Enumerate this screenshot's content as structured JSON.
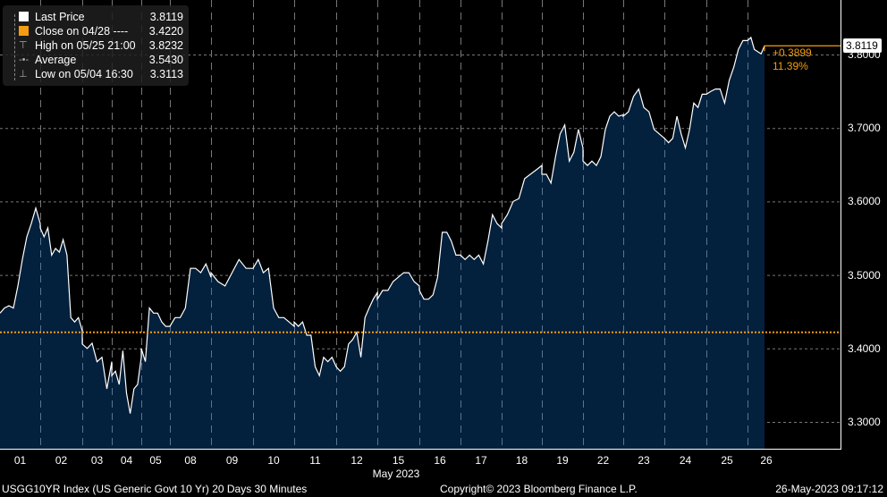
{
  "chart_data": {
    "type": "area",
    "ylim": [
      3.26,
      3.865
    ],
    "yticks": [
      "3.3000",
      "3.4000",
      "3.5000",
      "3.6000",
      "3.7000",
      "3.8000"
    ],
    "ytick_values": [
      3.3,
      3.4,
      3.5,
      3.6,
      3.7,
      3.8
    ],
    "xlabel": "May 2023",
    "grid": true,
    "legend_placement": "top-left",
    "days": [
      {
        "label": "01",
        "values": [
          3.448,
          3.455,
          3.458,
          3.455,
          3.485,
          3.521,
          3.552,
          3.57,
          3.591,
          3.57
        ]
      },
      {
        "label": "02",
        "values": [
          3.564,
          3.552,
          3.564,
          3.527,
          3.536,
          3.531,
          3.548,
          3.527,
          3.442,
          3.436,
          3.442,
          3.424
        ]
      },
      {
        "label": "03",
        "values": [
          3.406,
          3.4,
          3.407,
          3.382,
          3.388,
          3.345,
          3.382
        ]
      },
      {
        "label": "04",
        "values": [
          3.363,
          3.369,
          3.351,
          3.397,
          3.339,
          3.3113,
          3.345,
          3.351,
          3.388
        ]
      },
      {
        "label": "05",
        "values": [
          3.4,
          3.382,
          3.455,
          3.448,
          3.448,
          3.436,
          3.43,
          3.43
        ]
      },
      {
        "label": "08",
        "values": [
          3.43,
          3.442,
          3.442,
          3.455,
          3.509,
          3.509,
          3.503,
          3.515,
          3.497
        ]
      },
      {
        "label": "09",
        "values": [
          3.503,
          3.491,
          3.485,
          3.503,
          3.521,
          3.509,
          3.509
        ]
      },
      {
        "label": "10",
        "values": [
          3.509,
          3.521,
          3.503,
          3.509,
          3.455,
          3.442,
          3.442,
          3.436,
          3.43
        ]
      },
      {
        "label": "11",
        "values": [
          3.436,
          3.43,
          3.436,
          3.418,
          3.418,
          3.375,
          3.363,
          3.388,
          3.382,
          3.388,
          3.375
        ]
      },
      {
        "label": "12",
        "values": [
          3.375,
          3.369,
          3.375,
          3.406,
          3.412,
          3.422,
          3.388,
          3.442,
          3.455,
          3.467,
          3.476
        ]
      },
      {
        "label": "15",
        "values": [
          3.467,
          3.479,
          3.479,
          3.491,
          3.497,
          3.503,
          3.503,
          3.491,
          3.485
        ]
      },
      {
        "label": "16",
        "values": [
          3.479,
          3.467,
          3.467,
          3.473,
          3.497,
          3.558,
          3.558,
          3.546,
          3.527,
          3.527
        ]
      },
      {
        "label": "17",
        "values": [
          3.527,
          3.521,
          3.527,
          3.521,
          3.527,
          3.515,
          3.546,
          3.582,
          3.57,
          3.564
        ]
      },
      {
        "label": "18",
        "values": [
          3.57,
          3.582,
          3.6,
          3.604,
          3.631,
          3.637,
          3.643,
          3.649
        ]
      },
      {
        "label": "19",
        "values": [
          3.637,
          3.637,
          3.625,
          3.661,
          3.692,
          3.704,
          3.655,
          3.667,
          3.698,
          3.673
        ]
      },
      {
        "label": "22",
        "values": [
          3.655,
          3.649,
          3.655,
          3.649,
          3.661,
          3.698,
          3.716,
          3.722,
          3.716,
          3.718
        ]
      },
      {
        "label": "23",
        "values": [
          3.716,
          3.722,
          3.743,
          3.753,
          3.728,
          3.722,
          3.698,
          3.692,
          3.686
        ]
      },
      {
        "label": "24",
        "values": [
          3.686,
          3.68,
          3.686,
          3.716,
          3.692,
          3.673,
          3.698,
          3.734,
          3.728,
          3.746,
          3.746
        ]
      },
      {
        "label": "25",
        "values": [
          3.746,
          3.75,
          3.753,
          3.753,
          3.734,
          3.765,
          3.783,
          3.807,
          3.819,
          3.819
        ]
      },
      {
        "label": "26",
        "values": [
          3.819,
          3.8232,
          3.807,
          3.804,
          3.801,
          3.8119
        ]
      }
    ],
    "reference_lines": [
      {
        "name": "Close on 04/28",
        "value": 3.422,
        "color": "#f39c12",
        "style": "dotted"
      }
    ],
    "last_value": 3.8119,
    "colors": {
      "line": "#ffffff",
      "fill": "#03203d",
      "close": "#f39c12",
      "background": "#000000"
    }
  },
  "legend": {
    "items": [
      {
        "label": "Last Price",
        "value": "3.8119"
      },
      {
        "label": "Close on 04/28 ----",
        "value": "3.4220"
      },
      {
        "label": "High on 05/25 21:00",
        "value": "3.8232"
      },
      {
        "label": "Average",
        "value": "3.5430"
      },
      {
        "label": "Low on 05/04 16:30",
        "value": "3.3113"
      }
    ]
  },
  "annotations": {
    "last_price_label": "3.8119",
    "change": "+0.3899",
    "change_pct": "11.39%"
  },
  "footer": {
    "security": "USGG10YR Index (US Generic Govt 10 Yr) 20 Days 30 Minutes",
    "copyright": "Copyright© 2023 Bloomberg Finance L.P.",
    "timestamp": "26-May-2023 09:17:12"
  }
}
